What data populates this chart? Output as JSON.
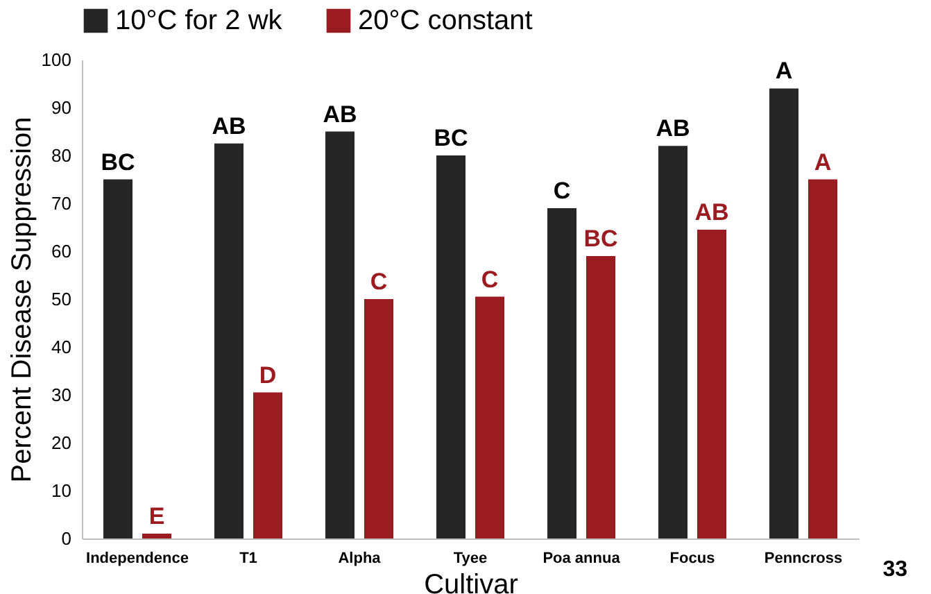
{
  "chart_data": {
    "type": "bar",
    "xlabel": "Cultivar",
    "ylabel": "Percent Disease Suppression",
    "categories": [
      "Independence",
      "T1",
      "Alpha",
      "Tyee",
      "Poa annua",
      "Focus",
      "Penncross"
    ],
    "series": [
      {
        "name": "10°C for 2 wk",
        "color": "#262626",
        "values": [
          75,
          82.5,
          85,
          80,
          69,
          82,
          94
        ],
        "value_labels": [
          "BC",
          "AB",
          "AB",
          "BC",
          "C",
          "AB",
          "A"
        ]
      },
      {
        "name": "20°C constant",
        "color": "#9b1c20",
        "values": [
          1,
          30.5,
          50,
          50.5,
          59,
          64.5,
          75
        ],
        "value_labels": [
          "E",
          "D",
          "C",
          "C",
          "BC",
          "AB",
          "A"
        ]
      }
    ],
    "ylim": [
      0,
      100
    ],
    "yticks": [
      0,
      10,
      20,
      30,
      40,
      50,
      60,
      70,
      80,
      90,
      100
    ],
    "grid": false,
    "legend": "top",
    "annotations": [
      {
        "text": "33"
      }
    ]
  }
}
